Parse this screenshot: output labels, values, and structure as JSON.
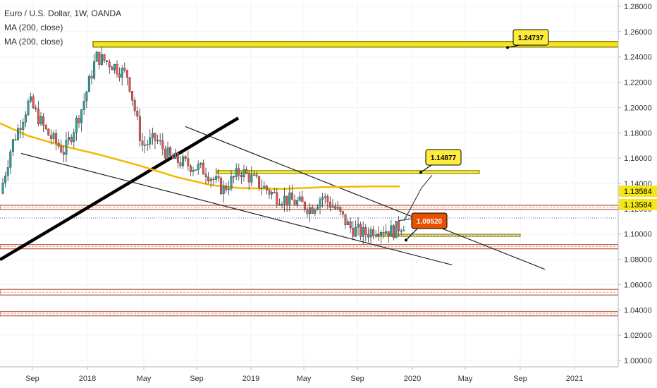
{
  "legend": {
    "title": "Euro / U.S. Dollar, 1W, OANDA",
    "ma1": "MA (200, close)",
    "ma2": "MA (200, close)"
  },
  "chart_data": {
    "type": "candlestick",
    "symbol": "Euro / U.S. Dollar, 1W, OANDA",
    "ylim": [
      0.995,
      1.285
    ],
    "y_ticks": [
      "1.28000",
      "1.26000",
      "1.24000",
      "1.22000",
      "1.20000",
      "1.18000",
      "1.16000",
      "1.14000",
      "1.12000",
      "1.10000",
      "1.08000",
      "1.06000",
      "1.04000",
      "1.02000",
      "1.00000"
    ],
    "x_ticks": [
      "Sep",
      "2018",
      "May",
      "Sep",
      "2019",
      "May",
      "Sep",
      "2020",
      "May",
      "Sep",
      "2021"
    ],
    "price_badges": [
      "1.13584",
      "1.13584"
    ],
    "callouts": [
      {
        "text": "1.24737",
        "target": 1.2474,
        "color": "#ffeb3b"
      },
      {
        "text": "1.14877",
        "target": 1.1488,
        "color": "#ffeb3b"
      },
      {
        "text": "1.09520",
        "target": 1.0952,
        "color": "#e65100"
      }
    ],
    "horizontal_zones": [
      {
        "level": 1.25,
        "color": "#f2e01a"
      },
      {
        "level": 1.149,
        "color": "#c8c400"
      },
      {
        "level": 1.121,
        "color": "#c0674a"
      },
      {
        "level": 1.099,
        "color": "#8a8a00"
      },
      {
        "level": 1.09,
        "color": "#c0674a"
      },
      {
        "level": 1.054,
        "color": "#c0674a"
      },
      {
        "level": 1.037,
        "color": "#c0674a"
      }
    ],
    "colors": {
      "up": "#26a69a",
      "down": "#ef5350",
      "ma": "#f5b800",
      "trend": "#000000"
    }
  }
}
